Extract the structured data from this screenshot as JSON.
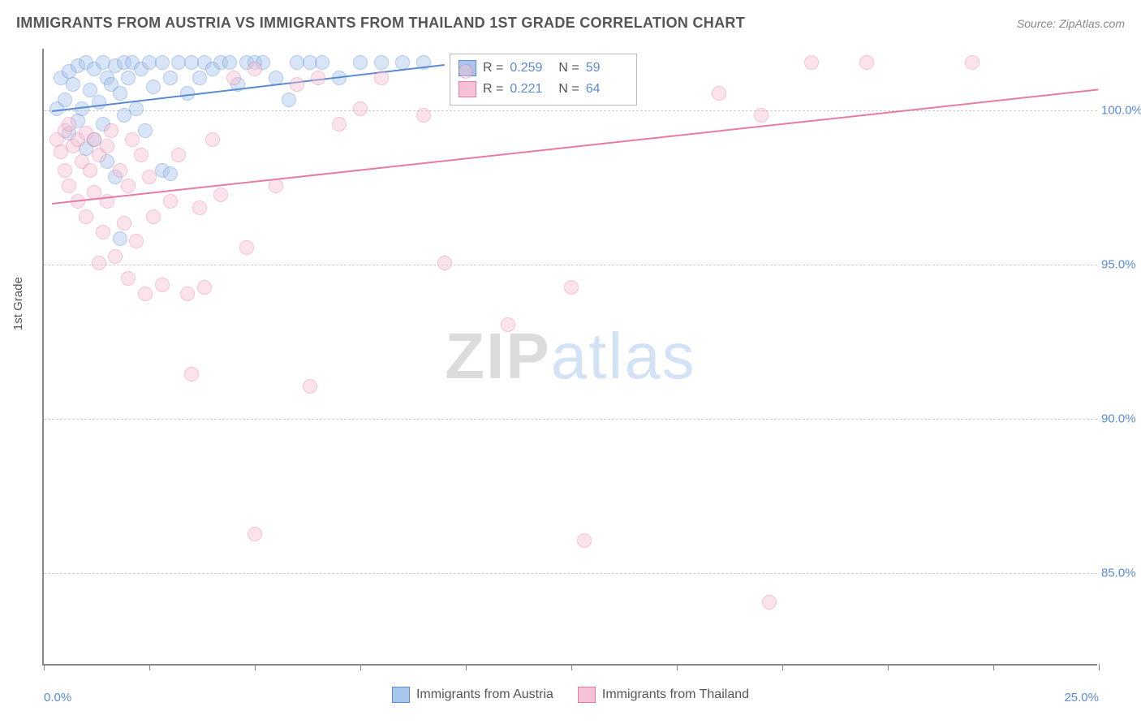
{
  "title": "IMMIGRANTS FROM AUSTRIA VS IMMIGRANTS FROM THAILAND 1ST GRADE CORRELATION CHART",
  "source": "Source: ZipAtlas.com",
  "ylabel": "1st Grade",
  "watermark_a": "ZIP",
  "watermark_b": "atlas",
  "chart": {
    "type": "scatter",
    "xlim": [
      0,
      25
    ],
    "ylim": [
      82,
      102
    ],
    "xtick_positions": [
      0,
      2.5,
      5,
      7.5,
      10,
      12.5,
      15,
      17.5,
      20,
      22.5,
      25
    ],
    "xtick_labels": {
      "0": "0.0%",
      "25": "25.0%"
    },
    "ytick_positions": [
      85,
      90,
      95,
      100
    ],
    "ytick_labels": [
      "85.0%",
      "90.0%",
      "95.0%",
      "100.0%"
    ],
    "background_color": "#ffffff",
    "grid_color": "#cccccc",
    "axis_color": "#888888",
    "tick_label_color": "#5b8bd4",
    "marker_radius": 9,
    "marker_opacity": 0.45,
    "series": [
      {
        "name": "Immigrants from Austria",
        "color_fill": "#a9c6ec",
        "color_stroke": "#5b8bd4",
        "R": "0.259",
        "N": "59",
        "trend": {
          "x0": 0.2,
          "y0": 100.0,
          "x1": 9.5,
          "y1": 101.5
        },
        "points": [
          [
            0.3,
            100.0
          ],
          [
            0.4,
            101.0
          ],
          [
            0.5,
            100.3
          ],
          [
            0.6,
            101.2
          ],
          [
            0.6,
            99.2
          ],
          [
            0.7,
            100.8
          ],
          [
            0.8,
            101.4
          ],
          [
            0.8,
            99.6
          ],
          [
            0.9,
            100.0
          ],
          [
            1.0,
            101.5
          ],
          [
            1.0,
            98.7
          ],
          [
            1.1,
            100.6
          ],
          [
            1.2,
            101.3
          ],
          [
            1.2,
            99.0
          ],
          [
            1.3,
            100.2
          ],
          [
            1.4,
            101.5
          ],
          [
            1.4,
            99.5
          ],
          [
            1.5,
            101.0
          ],
          [
            1.5,
            98.3
          ],
          [
            1.6,
            100.8
          ],
          [
            1.7,
            101.4
          ],
          [
            1.7,
            97.8
          ],
          [
            1.8,
            100.5
          ],
          [
            1.9,
            101.5
          ],
          [
            1.9,
            99.8
          ],
          [
            2.0,
            101.0
          ],
          [
            2.1,
            101.5
          ],
          [
            2.2,
            100.0
          ],
          [
            2.3,
            101.3
          ],
          [
            2.4,
            99.3
          ],
          [
            2.5,
            101.5
          ],
          [
            2.6,
            100.7
          ],
          [
            2.8,
            101.5
          ],
          [
            2.8,
            98.0
          ],
          [
            3.0,
            101.0
          ],
          [
            3.0,
            97.9
          ],
          [
            3.2,
            101.5
          ],
          [
            3.4,
            100.5
          ],
          [
            3.5,
            101.5
          ],
          [
            3.7,
            101.0
          ],
          [
            3.8,
            101.5
          ],
          [
            4.0,
            101.3
          ],
          [
            4.2,
            101.5
          ],
          [
            4.4,
            101.5
          ],
          [
            4.6,
            100.8
          ],
          [
            4.8,
            101.5
          ],
          [
            5.0,
            101.5
          ],
          [
            5.2,
            101.5
          ],
          [
            5.5,
            101.0
          ],
          [
            5.8,
            100.3
          ],
          [
            6.0,
            101.5
          ],
          [
            6.3,
            101.5
          ],
          [
            6.6,
            101.5
          ],
          [
            7.0,
            101.0
          ],
          [
            7.5,
            101.5
          ],
          [
            8.0,
            101.5
          ],
          [
            8.5,
            101.5
          ],
          [
            1.8,
            95.8
          ],
          [
            9.0,
            101.5
          ]
        ]
      },
      {
        "name": "Immigrants from Thailand",
        "color_fill": "#f4c2d4",
        "color_stroke": "#e87ba5",
        "R": "0.221",
        "N": "64",
        "trend": {
          "x0": 0.2,
          "y0": 97.0,
          "x1": 25.0,
          "y1": 100.7
        },
        "points": [
          [
            0.3,
            99.0
          ],
          [
            0.4,
            98.6
          ],
          [
            0.5,
            99.3
          ],
          [
            0.5,
            98.0
          ],
          [
            0.6,
            99.5
          ],
          [
            0.6,
            97.5
          ],
          [
            0.7,
            98.8
          ],
          [
            0.8,
            99.0
          ],
          [
            0.8,
            97.0
          ],
          [
            0.9,
            98.3
          ],
          [
            1.0,
            99.2
          ],
          [
            1.0,
            96.5
          ],
          [
            1.1,
            98.0
          ],
          [
            1.2,
            99.0
          ],
          [
            1.2,
            97.3
          ],
          [
            1.3,
            98.5
          ],
          [
            1.4,
            96.0
          ],
          [
            1.5,
            98.8
          ],
          [
            1.5,
            97.0
          ],
          [
            1.6,
            99.3
          ],
          [
            1.7,
            95.2
          ],
          [
            1.8,
            98.0
          ],
          [
            1.9,
            96.3
          ],
          [
            2.0,
            97.5
          ],
          [
            2.1,
            99.0
          ],
          [
            2.2,
            95.7
          ],
          [
            2.3,
            98.5
          ],
          [
            2.4,
            94.0
          ],
          [
            2.5,
            97.8
          ],
          [
            2.6,
            96.5
          ],
          [
            2.8,
            94.3
          ],
          [
            3.0,
            97.0
          ],
          [
            3.2,
            98.5
          ],
          [
            3.4,
            94.0
          ],
          [
            3.5,
            91.4
          ],
          [
            3.7,
            96.8
          ],
          [
            4.0,
            99.0
          ],
          [
            4.2,
            97.2
          ],
          [
            4.5,
            101.0
          ],
          [
            4.8,
            95.5
          ],
          [
            5.0,
            101.3
          ],
          [
            5.0,
            86.2
          ],
          [
            5.5,
            97.5
          ],
          [
            6.0,
            100.8
          ],
          [
            6.3,
            91.0
          ],
          [
            6.5,
            101.0
          ],
          [
            7.0,
            99.5
          ],
          [
            7.5,
            100.0
          ],
          [
            8.0,
            101.0
          ],
          [
            9.0,
            99.8
          ],
          [
            9.5,
            95.0
          ],
          [
            10.0,
            101.2
          ],
          [
            11.0,
            93.0
          ],
          [
            12.5,
            94.2
          ],
          [
            12.8,
            86.0
          ],
          [
            16.0,
            100.5
          ],
          [
            17.2,
            84.0
          ],
          [
            18.2,
            101.5
          ],
          [
            17.0,
            99.8
          ],
          [
            19.5,
            101.5
          ],
          [
            22.0,
            101.5
          ],
          [
            2.0,
            94.5
          ],
          [
            1.3,
            95.0
          ],
          [
            3.8,
            94.2
          ]
        ]
      }
    ]
  },
  "stats_box": {
    "R_label": "R =",
    "N_label": "N ="
  },
  "legend": {
    "austria": "Immigrants from Austria",
    "thailand": "Immigrants from Thailand"
  }
}
